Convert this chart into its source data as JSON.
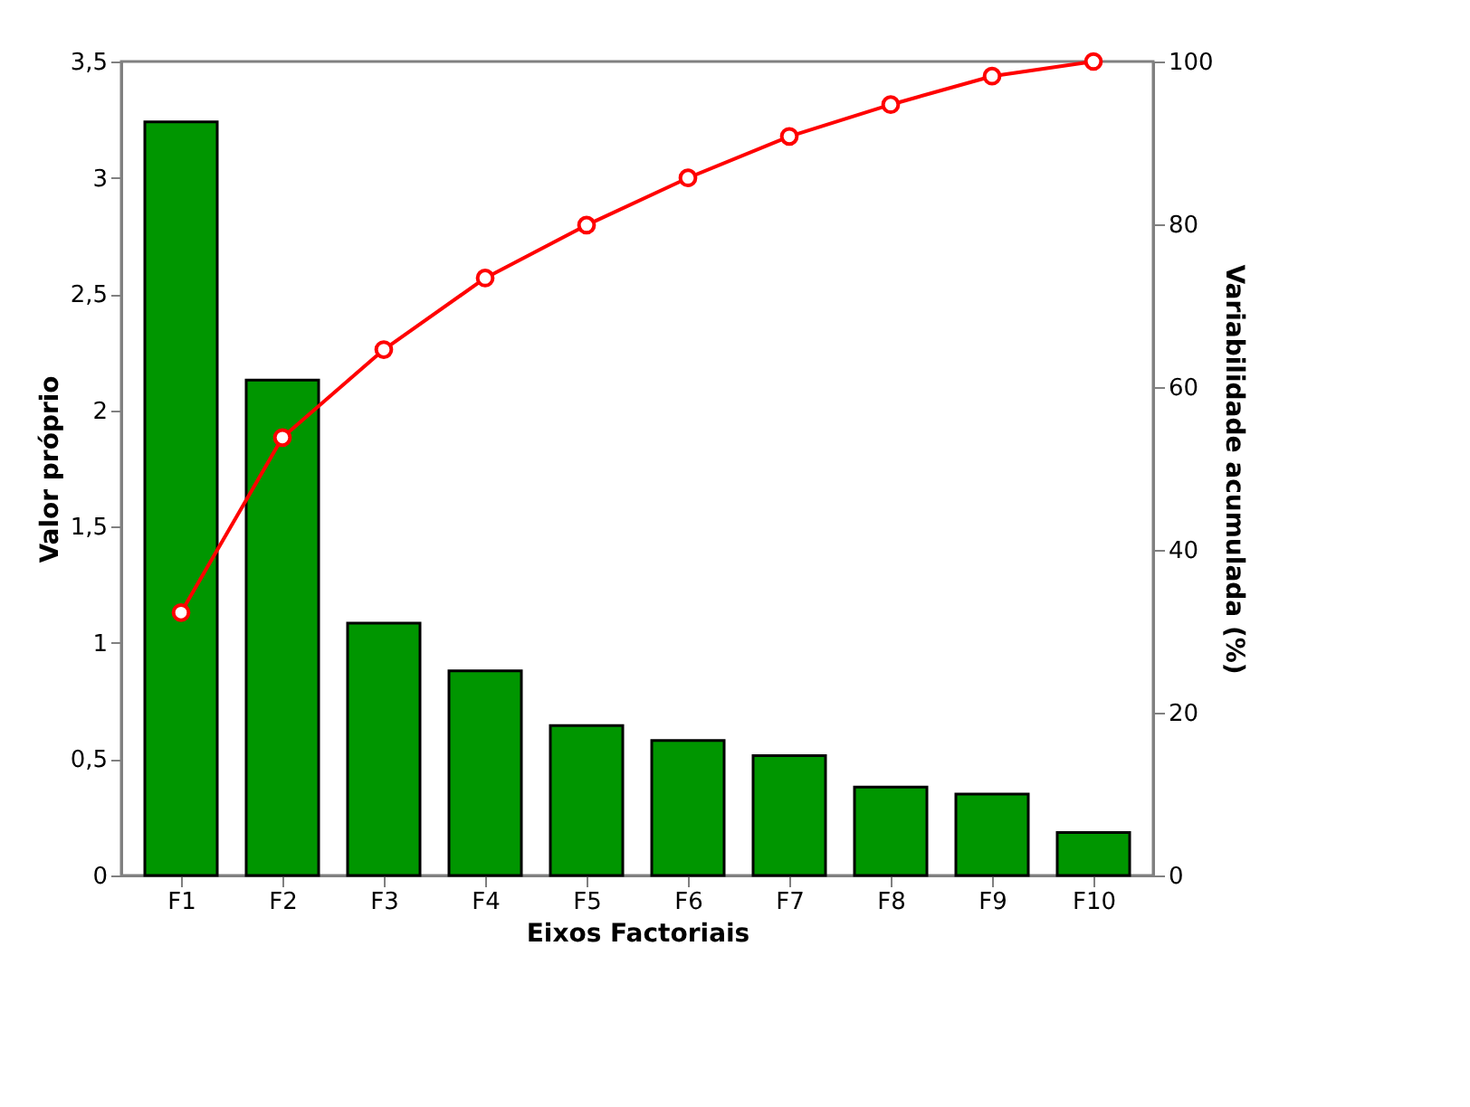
{
  "chart_data": {
    "type": "bar",
    "xlabel": "Eixos Factoriais",
    "ylabel": "Valor próprio",
    "y2label": "Variabilidade acumulada (%)",
    "categories": [
      "F1",
      "F2",
      "F3",
      "F4",
      "F5",
      "F6",
      "F7",
      "F8",
      "F9",
      "F10"
    ],
    "series": [
      {
        "color": "#009600",
        "values": [
          3.24,
          2.13,
          1.085,
          0.88,
          0.645,
          0.58,
          0.515,
          0.38,
          0.35,
          0.185
        ]
      },
      {
        "type": "line",
        "axis": "y2",
        "color": "#ff0000",
        "marker": "circle",
        "line_style": "solid",
        "values": [
          32.3,
          53.8,
          64.6,
          73.4,
          79.9,
          85.7,
          90.8,
          94.7,
          98.2,
          100
        ]
      }
    ],
    "ylim": [
      0,
      3.5
    ],
    "yticks": [
      0,
      {
        "value": 0.5,
        "label": "0,5"
      },
      1,
      {
        "value": 1.5,
        "label": "1,5"
      },
      2,
      {
        "value": 2.5,
        "label": "2,5"
      },
      3,
      {
        "value": 3.5,
        "label": "3,5"
      }
    ],
    "y2lim": [
      0,
      100
    ],
    "y2ticks": [
      0,
      20,
      40,
      60,
      80,
      100
    ],
    "grid": false
  }
}
